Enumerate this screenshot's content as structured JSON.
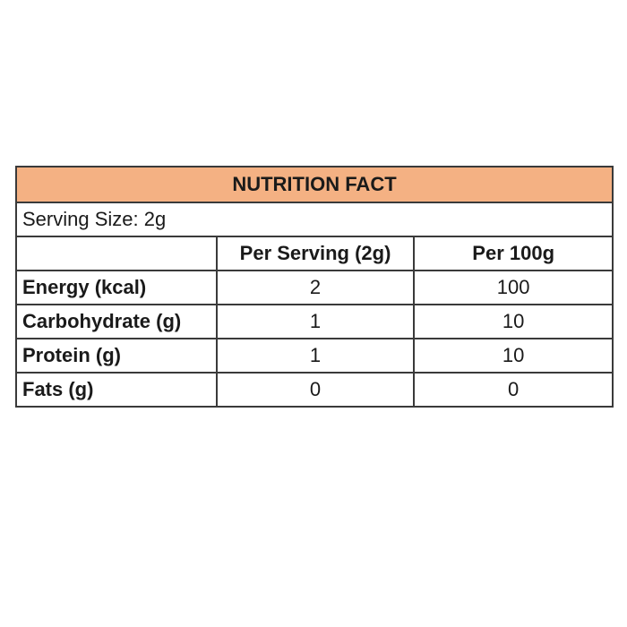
{
  "table": {
    "title": "NUTRITION FACT",
    "serving_size": "Serving Size: 2g",
    "headers": [
      "",
      "Per Serving (2g)",
      "Per 100g"
    ],
    "rows": [
      {
        "label": "Energy (kcal)",
        "per_serving": "2",
        "per_100g": "100"
      },
      {
        "label": "Carbohydrate (g)",
        "per_serving": "1",
        "per_100g": "10"
      },
      {
        "label": "Protein (g)",
        "per_serving": "1",
        "per_100g": "10"
      },
      {
        "label": "Fats (g)",
        "per_serving": "0",
        "per_100g": "0"
      }
    ]
  },
  "colors": {
    "title_background": "#f4b183",
    "border": "#3a3a3a"
  }
}
